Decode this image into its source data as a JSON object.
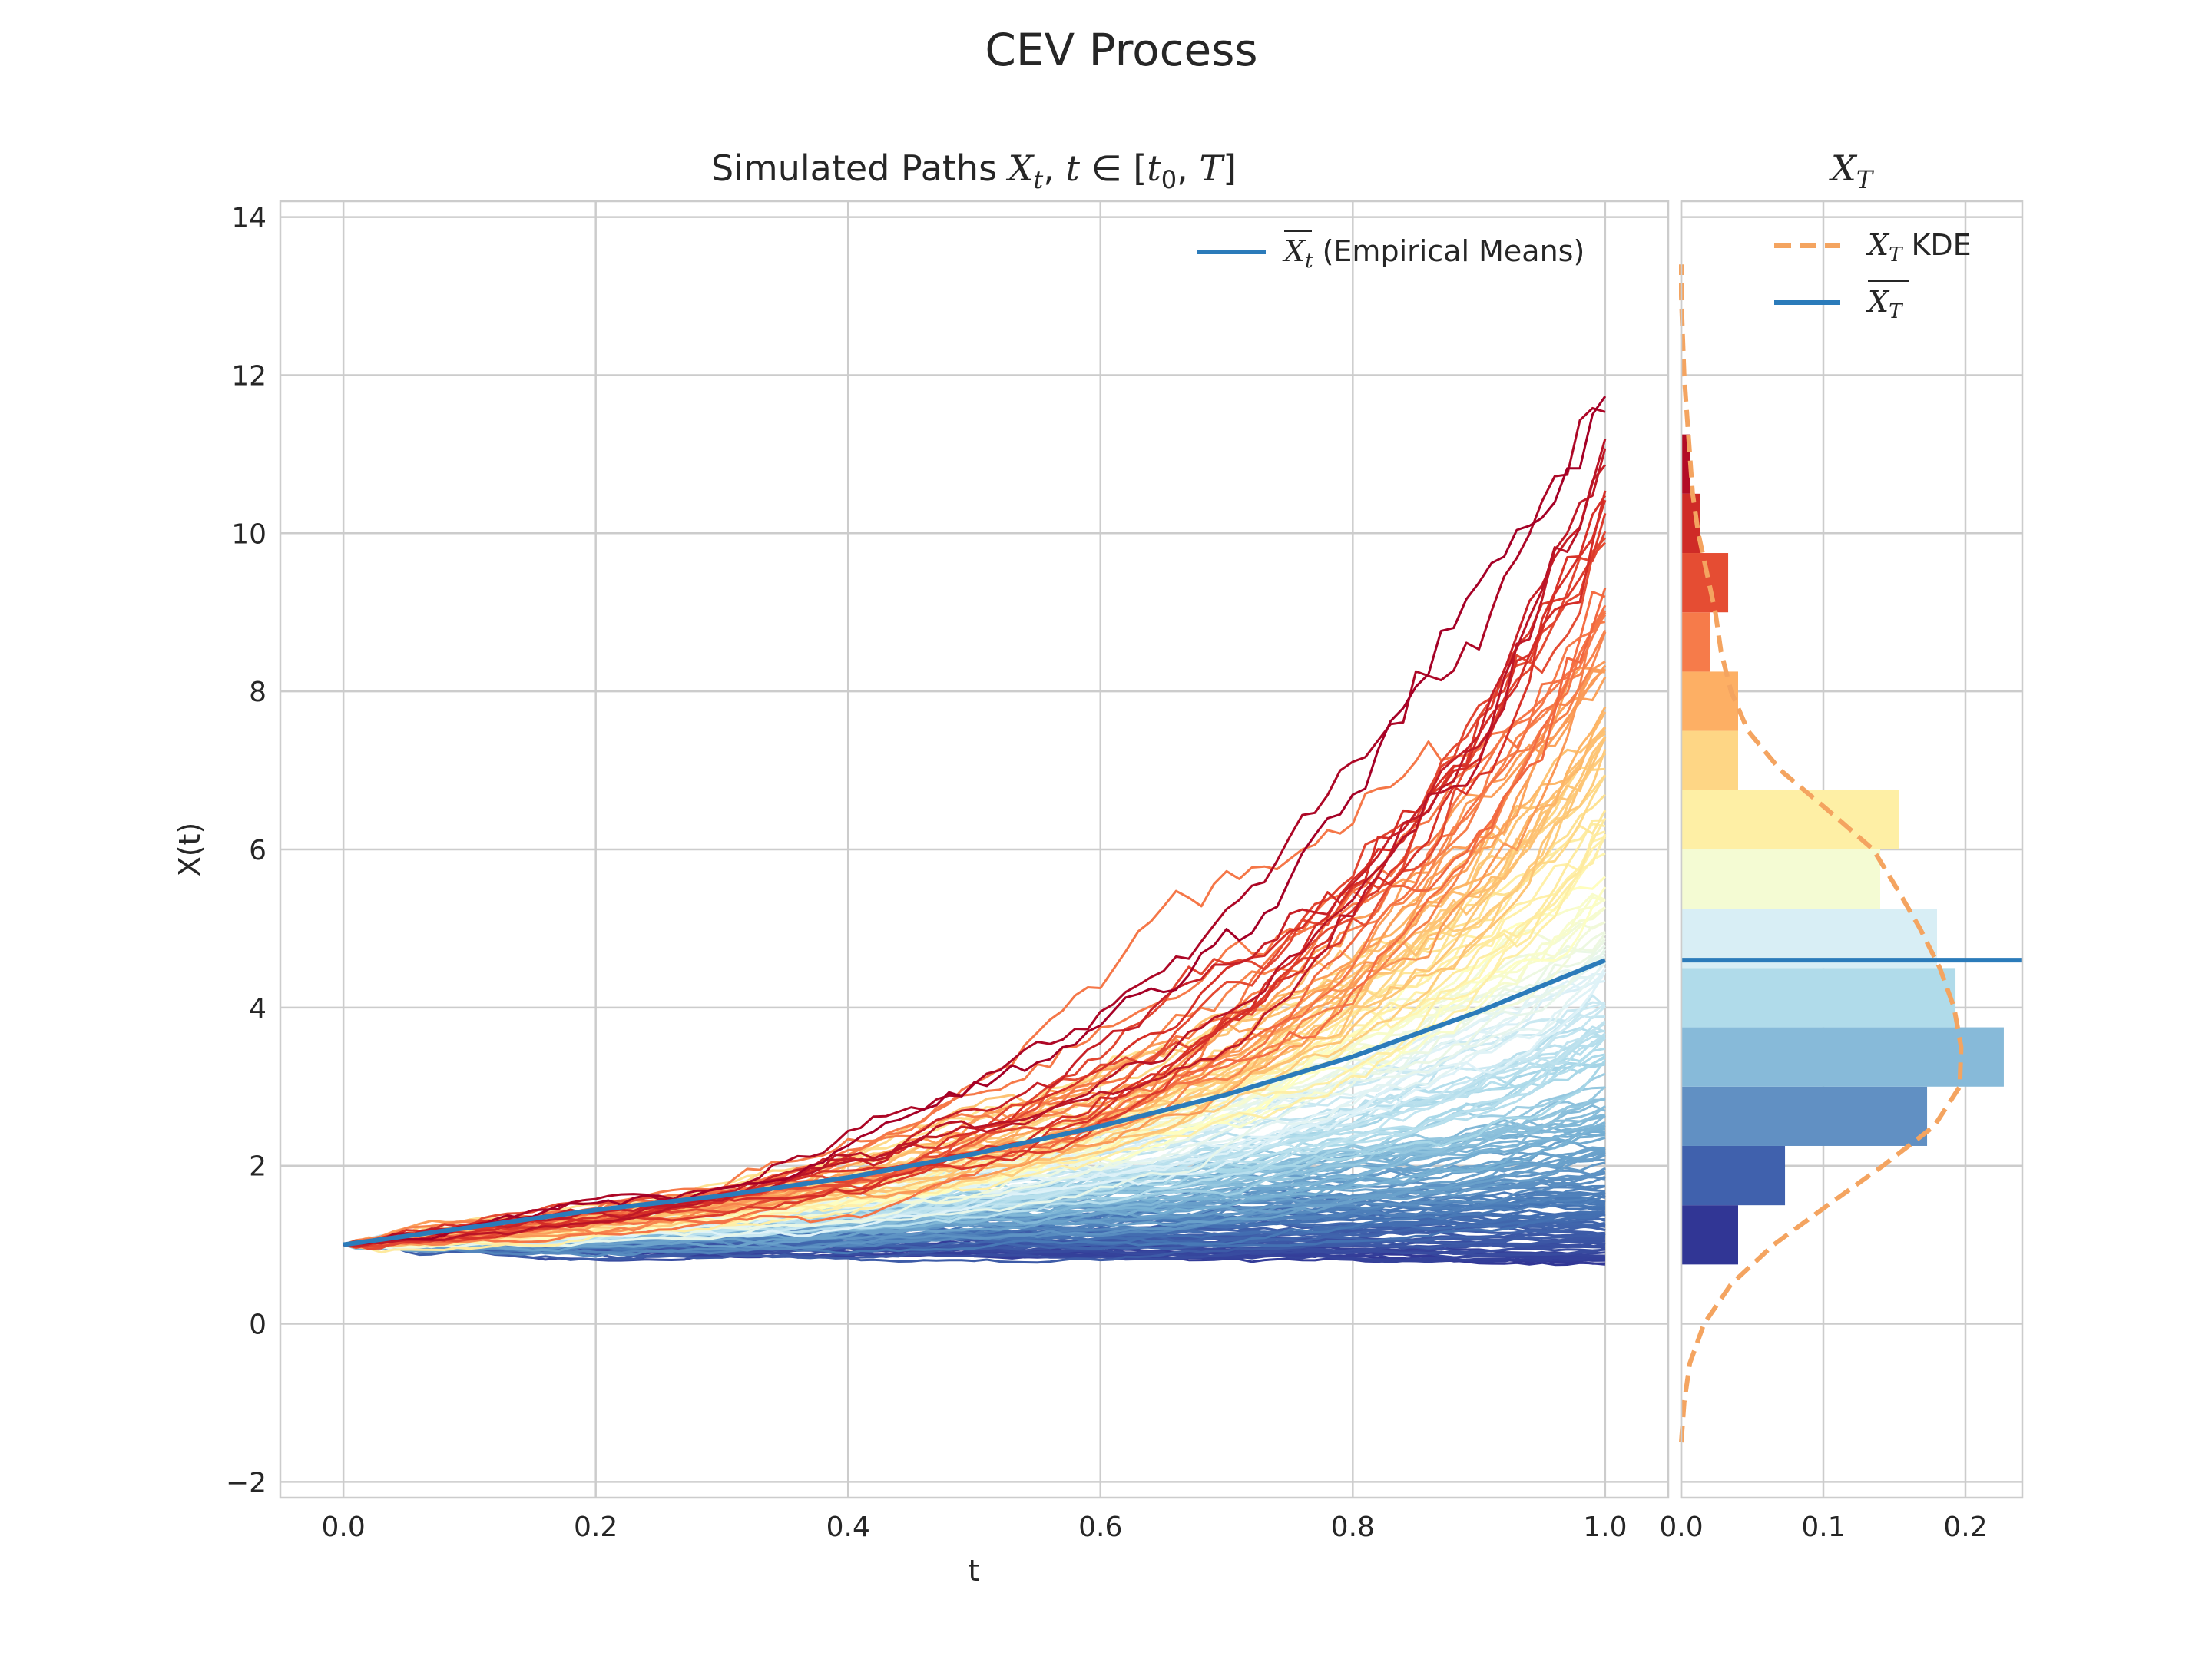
{
  "figure": {
    "title": "CEV Process"
  },
  "chart_data": [
    {
      "type": "line",
      "title": "Simulated Paths X_t, t ∈ [t_0, T]",
      "title_parts": {
        "prefix": "Simulated Paths ",
        "var": "X",
        "var_sub": "t",
        "comma": ", ",
        "t": "t",
        "in": " ∈ [",
        "t0": "t",
        "t0_sub": "0",
        "sep": ", ",
        "T": "T",
        "close": "]"
      },
      "xlabel": "t",
      "ylabel": "X(t)",
      "xlim": [
        -0.05,
        1.05
      ],
      "ylim": [
        -2.2,
        14.2
      ],
      "xticks": [
        "0.0",
        "0.2",
        "0.4",
        "0.6",
        "0.8",
        "1.0"
      ],
      "xtick_values": [
        0.0,
        0.2,
        0.4,
        0.6,
        0.8,
        1.0
      ],
      "yticks": [
        "−2",
        "0",
        "2",
        "4",
        "6",
        "8",
        "10",
        "12",
        "14"
      ],
      "ytick_values": [
        -2,
        0,
        2,
        4,
        6,
        8,
        10,
        12,
        14
      ],
      "grid": true,
      "legend": {
        "placement": "top-right",
        "entry": {
          "label_var": "X",
          "label_sub": "t",
          "label_text": "  (Empirical Means)",
          "color": "#2b7bba"
        }
      },
      "paths": {
        "count": 200,
        "t0": 0.0,
        "T": 1.0,
        "x0": 1.0,
        "colormap": "RdYlBu_r",
        "final_value_range": [
          0.75,
          11.2
        ]
      },
      "mean_path": {
        "name": "Empirical Means",
        "color": "#2b7bba",
        "x": [
          0.0,
          0.1,
          0.2,
          0.3,
          0.4,
          0.5,
          0.6,
          0.7,
          0.8,
          0.9,
          1.0
        ],
        "y": [
          1.0,
          1.22,
          1.44,
          1.62,
          1.85,
          2.15,
          2.5,
          2.9,
          3.38,
          3.95,
          4.6
        ]
      }
    },
    {
      "type": "bar",
      "orientation": "horizontal",
      "title_var": "X",
      "title_sub": "T",
      "xlim": [
        0.0,
        0.24
      ],
      "xticks": [
        "0.0",
        "0.1",
        "0.2"
      ],
      "xtick_values": [
        0.0,
        0.1,
        0.2
      ],
      "ylim": [
        -2.2,
        14.2
      ],
      "grid": true,
      "bins": [
        {
          "from": 0.75,
          "to": 1.5,
          "density": 0.04,
          "color": "#313695"
        },
        {
          "from": 1.5,
          "to": 2.25,
          "density": 0.073,
          "color": "#4061ad"
        },
        {
          "from": 2.25,
          "to": 3.0,
          "density": 0.173,
          "color": "#6190c3"
        },
        {
          "from": 3.0,
          "to": 3.75,
          "density": 0.227,
          "color": "#87bad9"
        },
        {
          "from": 3.75,
          "to": 4.5,
          "density": 0.193,
          "color": "#b0dbea"
        },
        {
          "from": 4.5,
          "to": 5.25,
          "density": 0.18,
          "color": "#d8eef5"
        },
        {
          "from": 5.25,
          "to": 6.0,
          "density": 0.14,
          "color": "#f4fbd3"
        },
        {
          "from": 6.0,
          "to": 6.75,
          "density": 0.153,
          "color": "#feefa5"
        },
        {
          "from": 6.75,
          "to": 7.5,
          "density": 0.04,
          "color": "#fed685"
        },
        {
          "from": 7.5,
          "to": 8.25,
          "density": 0.04,
          "color": "#fdaf64"
        },
        {
          "from": 8.25,
          "to": 9.0,
          "density": 0.02,
          "color": "#f67b4a"
        },
        {
          "from": 9.0,
          "to": 9.75,
          "density": 0.033,
          "color": "#e54d33"
        },
        {
          "from": 9.75,
          "to": 10.5,
          "density": 0.013,
          "color": "#cf2b27"
        },
        {
          "from": 10.5,
          "to": 11.25,
          "density": 0.006,
          "color": "#b30c26"
        }
      ],
      "kde": {
        "name": "X_T KDE",
        "label_var": "X",
        "label_sub": "T",
        "label_text": "  KDE",
        "color": "#f4a460",
        "y": [
          -1.5,
          -1.0,
          -0.5,
          0.0,
          0.5,
          1.0,
          1.5,
          2.0,
          2.5,
          3.0,
          3.5,
          4.0,
          4.5,
          5.0,
          5.5,
          6.0,
          6.5,
          7.0,
          7.5,
          8.0,
          8.5,
          9.0,
          9.5,
          10.0,
          10.5,
          11.0,
          11.5,
          12.0,
          12.5,
          13.0,
          13.4
        ],
        "density": [
          0.0,
          0.002,
          0.006,
          0.016,
          0.035,
          0.065,
          0.103,
          0.142,
          0.178,
          0.196,
          0.197,
          0.192,
          0.182,
          0.168,
          0.152,
          0.135,
          0.103,
          0.07,
          0.047,
          0.035,
          0.028,
          0.024,
          0.018,
          0.012,
          0.008,
          0.006,
          0.004,
          0.002,
          0.001,
          0.0,
          0.0
        ]
      },
      "mean_line": {
        "value": 4.6,
        "color": "#2b7bba",
        "label_var": "X",
        "label_sub": "T"
      }
    }
  ]
}
